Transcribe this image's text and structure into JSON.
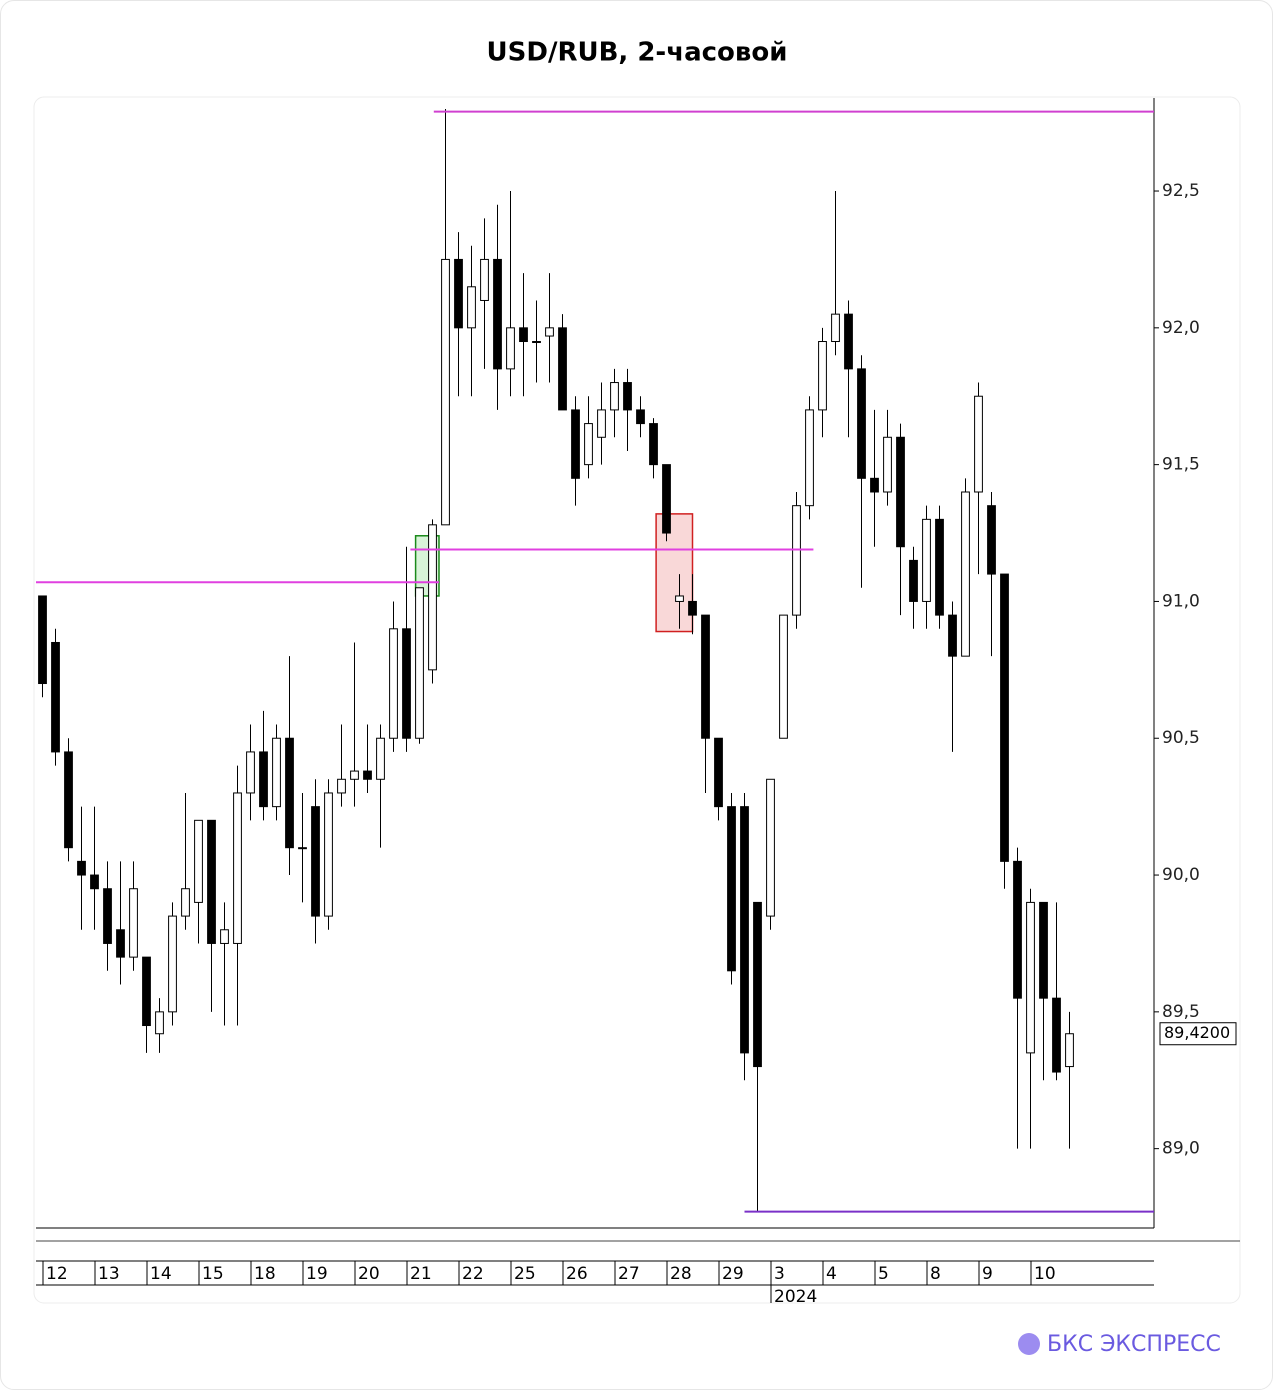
{
  "chart_data": {
    "type": "candlestick",
    "title": "USD/RUB, 2-часовой",
    "categories": [
      "12",
      null,
      null,
      null,
      "13",
      null,
      null,
      null,
      "14",
      null,
      null,
      null,
      "15",
      null,
      null,
      null,
      "18",
      null,
      null,
      null,
      "19",
      null,
      null,
      null,
      "20",
      null,
      null,
      null,
      "21",
      null,
      null,
      null,
      "22",
      null,
      null,
      null,
      "25",
      null,
      null,
      null,
      "26",
      null,
      null,
      null,
      "27",
      null,
      null,
      null,
      "28",
      null,
      null,
      null,
      "29",
      null,
      null,
      null,
      "3",
      null,
      null,
      null,
      "4",
      null,
      null,
      null,
      "5",
      null,
      null,
      null,
      "8",
      null,
      null,
      null,
      "9",
      null,
      null,
      null,
      "10",
      null,
      null,
      null
    ],
    "year_label": {
      "index": 56,
      "label": "2024"
    },
    "open": [
      91.02,
      90.85,
      90.45,
      90.05,
      90.0,
      89.95,
      89.8,
      89.7,
      89.7,
      89.42,
      89.5,
      89.85,
      89.9,
      90.2,
      89.75,
      89.75,
      90.3,
      90.45,
      90.25,
      90.5,
      90.1,
      90.25,
      89.85,
      90.3,
      90.35,
      90.38,
      90.35,
      90.5,
      90.9,
      90.5,
      90.75,
      91.28,
      92.25,
      92.0,
      92.1,
      92.25,
      91.85,
      92.0,
      91.95,
      91.97,
      92.0,
      91.7,
      91.5,
      91.6,
      91.7,
      91.8,
      91.7,
      91.65,
      91.5,
      91.0,
      91.0,
      90.95,
      90.5,
      90.25,
      90.25,
      89.9,
      89.85,
      90.5,
      90.95,
      91.35,
      91.7,
      91.95,
      92.05,
      91.85,
      91.45,
      91.4,
      91.6,
      91.15,
      91.0,
      91.3,
      90.95,
      90.8,
      91.4,
      91.35,
      91.1,
      90.05,
      89.35,
      89.9,
      89.55,
      89.3
    ],
    "high": [
      91.02,
      90.9,
      90.5,
      90.25,
      90.25,
      90.05,
      90.05,
      90.05,
      89.7,
      89.55,
      89.9,
      90.3,
      90.2,
      90.2,
      89.9,
      90.4,
      90.55,
      90.6,
      90.55,
      90.8,
      90.3,
      90.35,
      90.35,
      90.55,
      90.85,
      90.55,
      90.55,
      91.0,
      91.2,
      91.05,
      91.3,
      92.8,
      92.35,
      92.3,
      92.4,
      92.45,
      92.5,
      92.2,
      92.1,
      92.2,
      92.05,
      91.75,
      91.75,
      91.8,
      91.85,
      91.85,
      91.75,
      91.67,
      91.5,
      91.1,
      91.1,
      90.95,
      90.5,
      90.3,
      90.3,
      89.9,
      90.35,
      90.95,
      91.4,
      91.75,
      92.0,
      92.5,
      92.1,
      91.9,
      91.7,
      91.7,
      91.65,
      91.2,
      91.35,
      91.35,
      91.0,
      91.45,
      91.8,
      91.4,
      91.1,
      90.1,
      89.95,
      89.9,
      89.9,
      89.5
    ],
    "low": [
      90.65,
      90.4,
      90.05,
      89.8,
      89.8,
      89.65,
      89.6,
      89.65,
      89.35,
      89.35,
      89.45,
      89.8,
      89.75,
      89.5,
      89.45,
      89.45,
      90.2,
      90.2,
      90.2,
      90.0,
      89.9,
      89.75,
      89.8,
      90.25,
      90.25,
      90.3,
      90.1,
      90.45,
      90.45,
      90.48,
      90.7,
      91.28,
      91.75,
      91.75,
      91.85,
      91.7,
      91.75,
      91.75,
      91.8,
      91.8,
      91.7,
      91.35,
      91.45,
      91.5,
      91.6,
      91.55,
      91.6,
      91.45,
      91.22,
      90.9,
      90.88,
      90.3,
      90.2,
      89.6,
      89.25,
      88.77,
      89.8,
      90.5,
      90.9,
      91.3,
      91.6,
      91.9,
      91.6,
      91.05,
      91.2,
      91.35,
      90.95,
      90.9,
      90.9,
      90.9,
      90.45,
      90.8,
      91.1,
      90.8,
      89.95,
      89.0,
      89.0,
      89.25,
      89.25,
      89.0
    ],
    "close": [
      90.7,
      90.45,
      90.1,
      90.0,
      89.95,
      89.75,
      89.7,
      89.95,
      89.45,
      89.5,
      89.85,
      89.95,
      90.2,
      89.75,
      89.8,
      90.3,
      90.45,
      90.25,
      90.5,
      90.1,
      90.1,
      89.85,
      90.3,
      90.35,
      90.38,
      90.35,
      90.5,
      90.9,
      90.5,
      91.05,
      91.28,
      92.25,
      92.0,
      92.15,
      92.25,
      91.85,
      92.0,
      91.95,
      91.95,
      92.0,
      91.7,
      91.45,
      91.65,
      91.7,
      91.8,
      91.7,
      91.65,
      91.5,
      91.25,
      91.02,
      90.95,
      90.5,
      90.25,
      89.65,
      89.35,
      89.3,
      90.35,
      90.95,
      91.35,
      91.7,
      91.95,
      92.05,
      91.85,
      91.45,
      91.4,
      91.6,
      91.2,
      91.0,
      91.3,
      90.95,
      90.8,
      91.4,
      91.75,
      91.1,
      90.05,
      89.55,
      89.9,
      89.55,
      89.28,
      89.42
    ],
    "up_color": "#ffffff",
    "down_color": "#000000",
    "outline_color": "#000000",
    "xlim": [
      0,
      86
    ],
    "ylim": [
      88.71,
      92.84
    ],
    "yticks": [
      {
        "value": 89.0,
        "label": "89,0"
      },
      {
        "value": 89.5,
        "label": "89,5"
      },
      {
        "value": 90.0,
        "label": "90,0"
      },
      {
        "value": 90.5,
        "label": "90,5"
      },
      {
        "value": 91.0,
        "label": "91,0"
      },
      {
        "value": 91.5,
        "label": "91,5"
      },
      {
        "value": 92.0,
        "label": "92,0"
      },
      {
        "value": 92.5,
        "label": "92,5"
      }
    ],
    "last_price": {
      "value": 89.42,
      "label": "89,4200"
    },
    "levels": [
      {
        "value": 91.07,
        "x": [
          0,
          31
        ],
        "color": "#e040e0"
      },
      {
        "value": 91.19,
        "x": [
          28.8,
          59.8
        ],
        "color": "#e040e0"
      },
      {
        "value": 92.79,
        "x": [
          30.6,
          86
        ],
        "color": "#d040d0"
      },
      {
        "value": 88.77,
        "x": [
          54.5,
          86
        ],
        "color": "#7a30c8"
      }
    ],
    "zones": [
      {
        "x": [
          29.2,
          31
        ],
        "y": [
          91.02,
          91.24
        ],
        "fill": "#c8f0c8",
        "stroke": "#1a8a1a"
      },
      {
        "x": [
          47.7,
          50.5
        ],
        "y": [
          90.89,
          91.32
        ],
        "fill": "#f6c8c8",
        "stroke": "#d02020"
      }
    ]
  },
  "brand": "БКС ЭКСПРЕСС"
}
